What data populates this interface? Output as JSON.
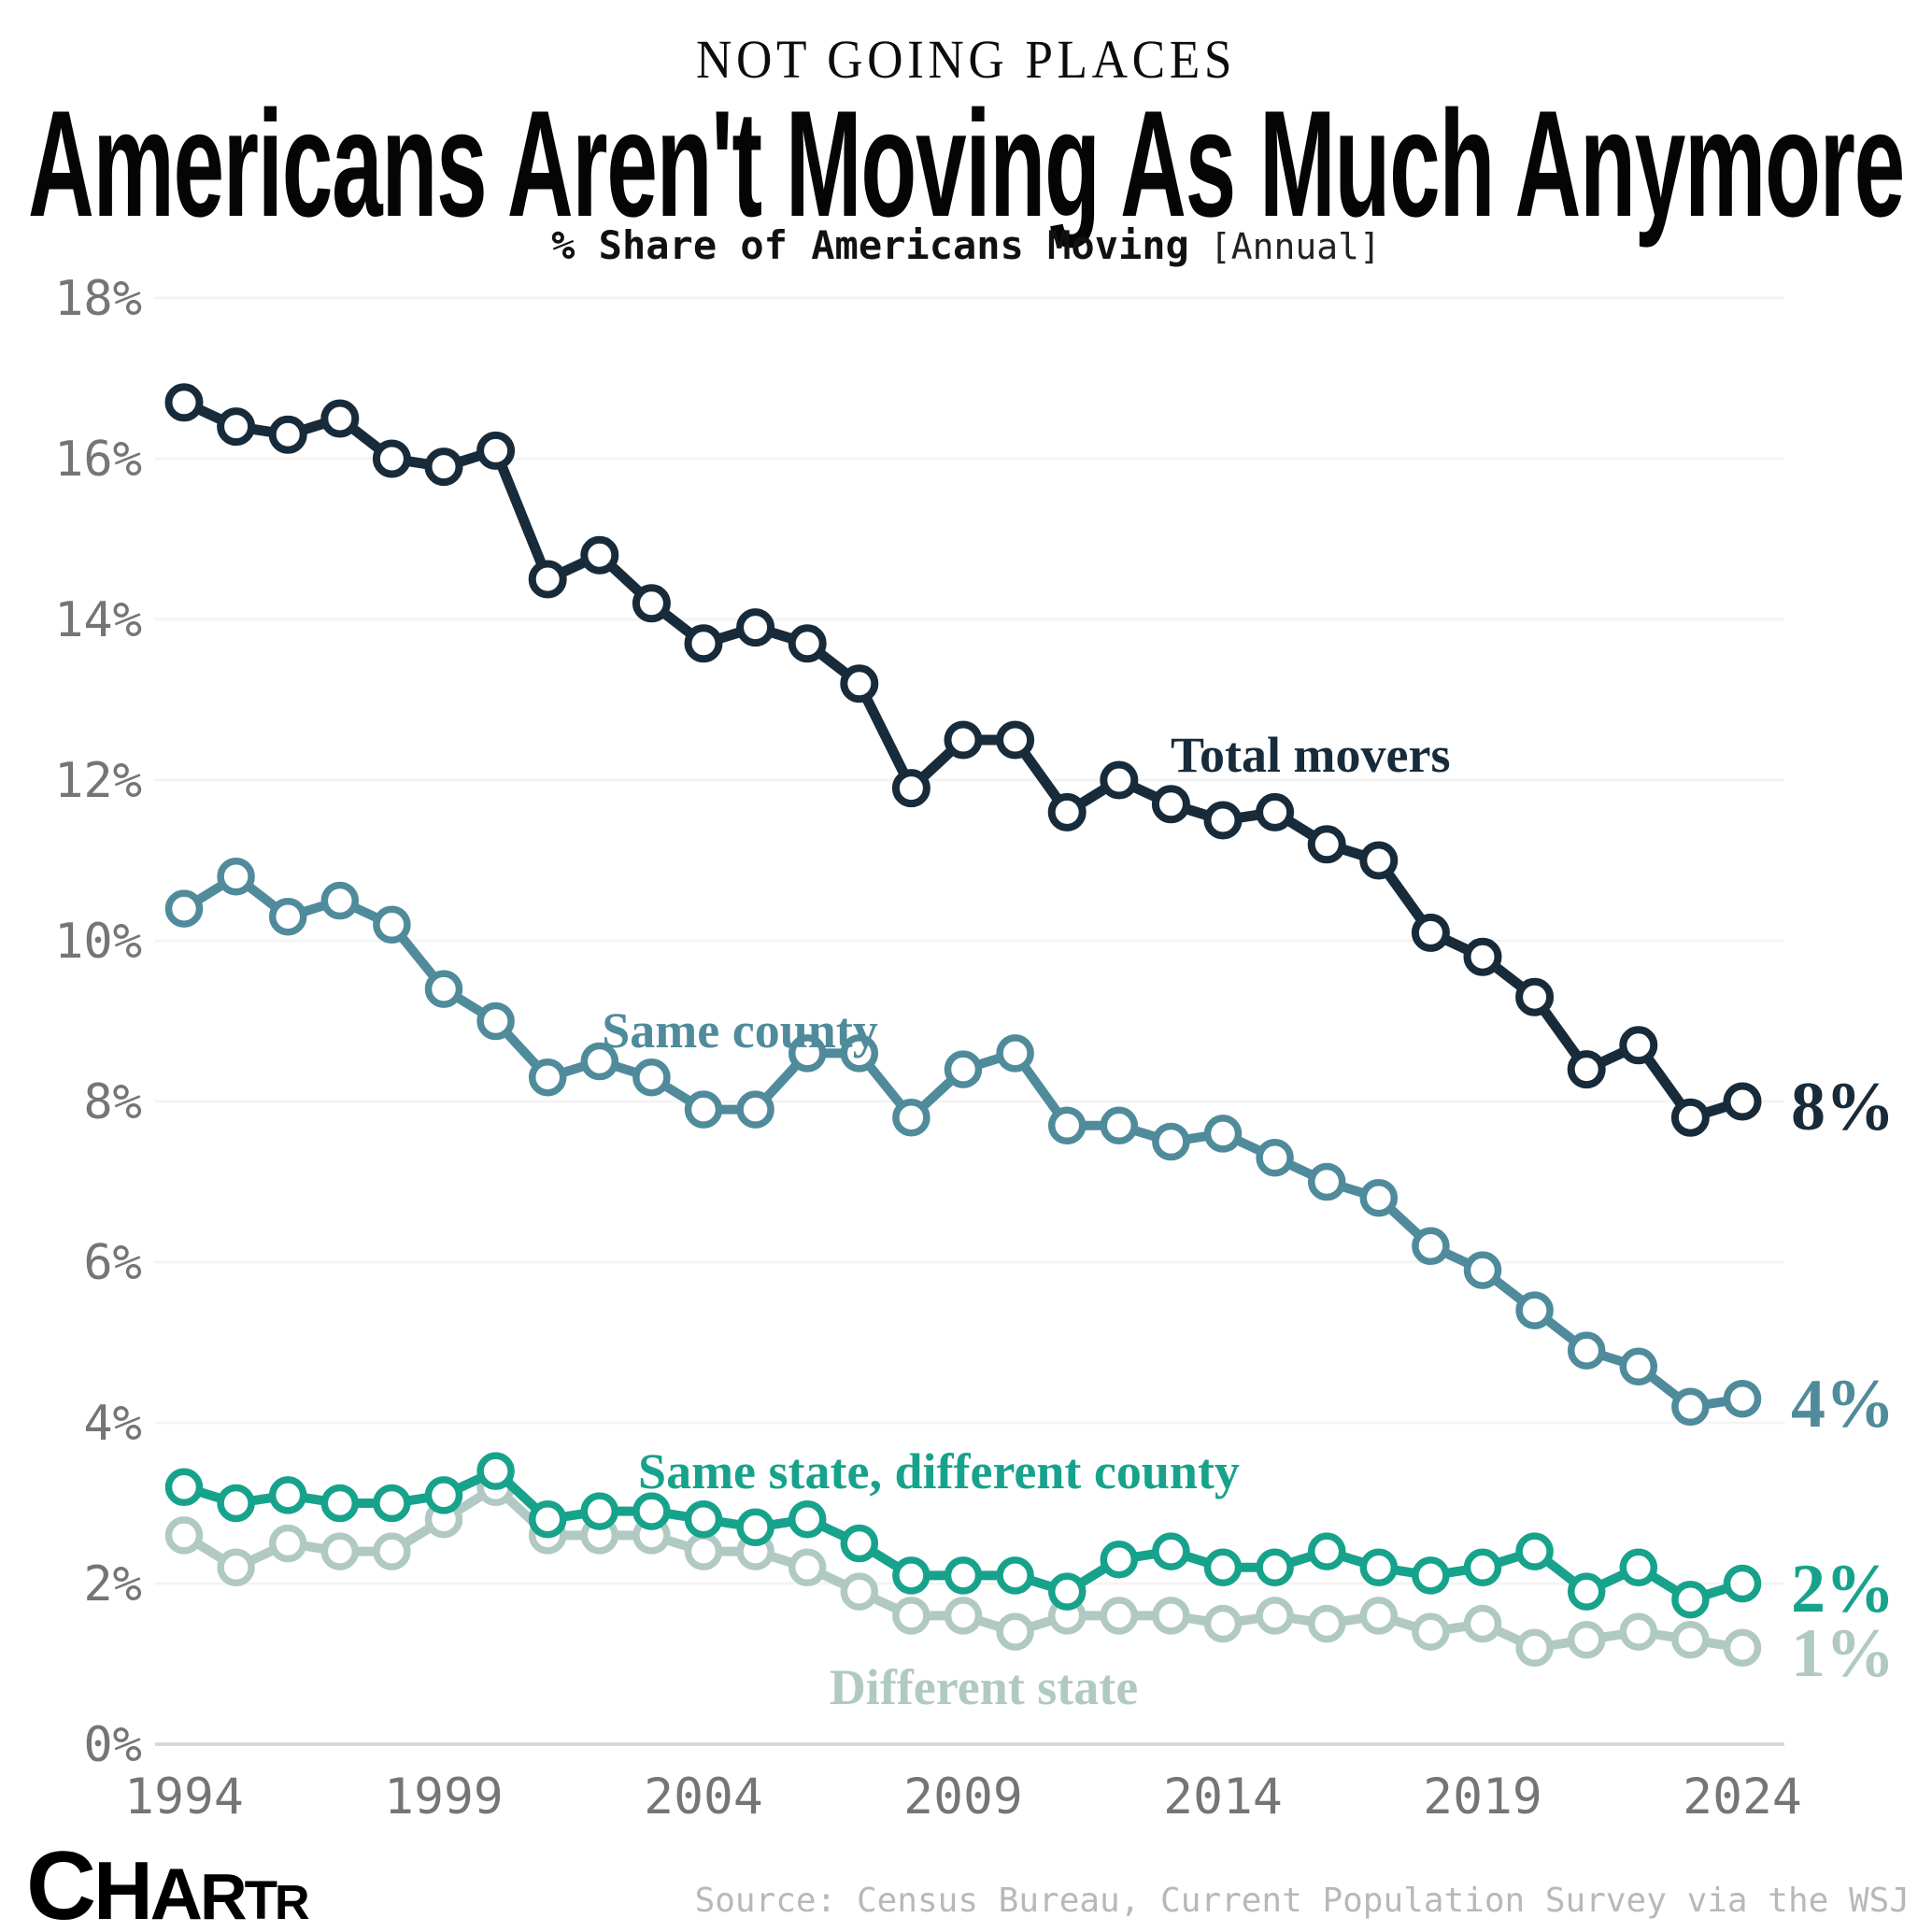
{
  "header": {
    "kicker": "NOT GOING PLACES",
    "title": "Americans Aren't Moving As Much Anymore",
    "subtitle": "% Share of Americans Moving",
    "subtitle_tag": "[Annual]"
  },
  "chart_data": {
    "type": "line",
    "title": "Americans Aren't Moving As Much Anymore",
    "xlabel": "",
    "ylabel": "% Share of Americans Moving",
    "ylim": [
      0,
      18
    ],
    "grid": "horizontal",
    "legend_position": "inline-labels",
    "x": [
      1994,
      1995,
      1996,
      1997,
      1998,
      1999,
      2000,
      2001,
      2002,
      2003,
      2004,
      2005,
      2006,
      2007,
      2008,
      2009,
      2010,
      2011,
      2012,
      2013,
      2014,
      2015,
      2016,
      2017,
      2018,
      2019,
      2020,
      2021,
      2022,
      2023,
      2024
    ],
    "x_tick_years": [
      1994,
      1999,
      2004,
      2009,
      2014,
      2019,
      2024
    ],
    "y_ticks": [
      "0%",
      "2%",
      "4%",
      "6%",
      "8%",
      "10%",
      "12%",
      "14%",
      "16%",
      "18%"
    ],
    "series": [
      {
        "name": "Total movers",
        "color": "#182b3a",
        "end_label": "8%",
        "values": [
          16.7,
          16.4,
          16.3,
          16.5,
          16.0,
          15.9,
          16.1,
          14.5,
          14.8,
          14.2,
          13.7,
          13.9,
          13.7,
          13.2,
          11.9,
          12.5,
          12.5,
          11.6,
          12.0,
          11.7,
          11.5,
          11.6,
          11.2,
          11.0,
          10.1,
          9.8,
          9.3,
          8.4,
          8.7,
          7.8,
          8.0
        ]
      },
      {
        "name": "Same county",
        "color": "#4f8b9b",
        "end_label": "4%",
        "values": [
          10.4,
          10.8,
          10.3,
          10.5,
          10.2,
          9.4,
          9.0,
          8.3,
          8.5,
          8.3,
          7.9,
          7.9,
          8.6,
          8.6,
          7.8,
          8.4,
          8.6,
          7.7,
          7.7,
          7.5,
          7.6,
          7.3,
          7.0,
          6.8,
          6.2,
          5.9,
          5.4,
          4.9,
          4.7,
          4.2,
          4.3
        ]
      },
      {
        "name": "Same state, different county",
        "color": "#17a28c",
        "end_label": "2%",
        "values": [
          3.2,
          3.0,
          3.1,
          3.0,
          3.0,
          3.1,
          3.4,
          2.8,
          2.9,
          2.9,
          2.8,
          2.7,
          2.8,
          2.5,
          2.1,
          2.1,
          2.1,
          1.9,
          2.3,
          2.4,
          2.2,
          2.2,
          2.4,
          2.2,
          2.1,
          2.2,
          2.4,
          1.9,
          2.2,
          1.8,
          2.0
        ]
      },
      {
        "name": "Different state",
        "color": "#b1c9c3",
        "end_label": "1%",
        "values": [
          2.6,
          2.2,
          2.5,
          2.4,
          2.4,
          2.8,
          3.2,
          2.6,
          2.6,
          2.6,
          2.4,
          2.4,
          2.2,
          1.9,
          1.6,
          1.6,
          1.4,
          1.6,
          1.6,
          1.6,
          1.5,
          1.6,
          1.5,
          1.6,
          1.4,
          1.5,
          1.2,
          1.3,
          1.4,
          1.3,
          1.2
        ]
      }
    ]
  },
  "footer": {
    "logo_letters": [
      "C",
      "H",
      "A",
      "R",
      "T",
      "R"
    ],
    "source": "Source: Census Bureau, Current Population Survey via the WSJ"
  }
}
